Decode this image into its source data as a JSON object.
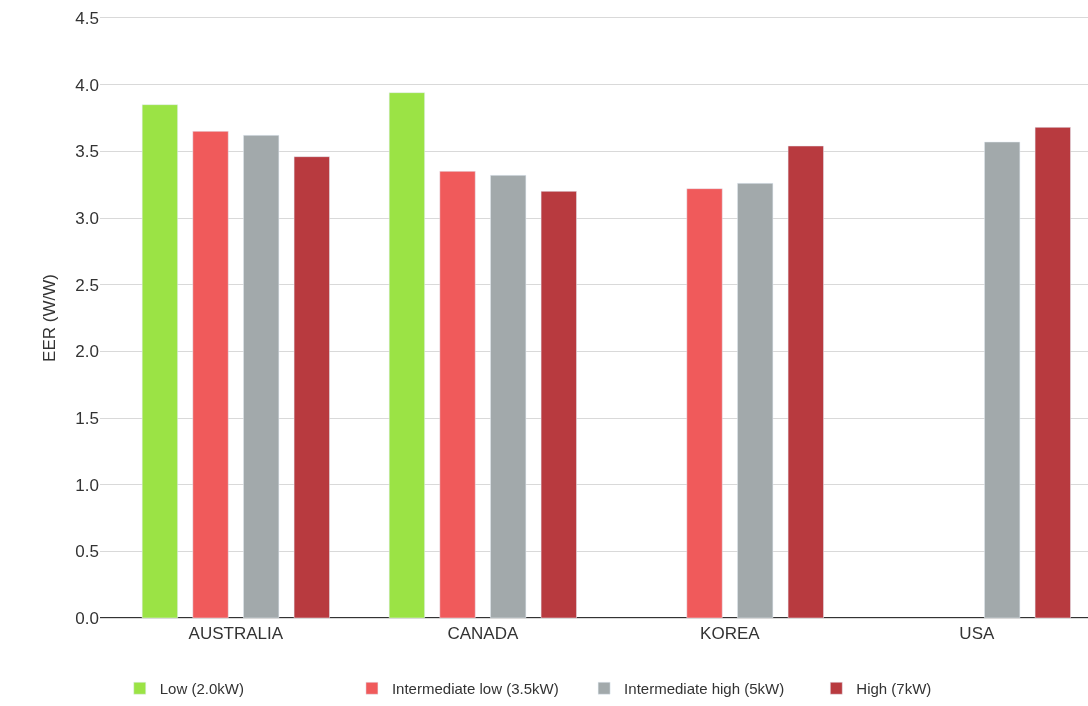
{
  "chart_data": {
    "type": "bar",
    "ylabel": "EER (W/W)",
    "categories": [
      "AUSTRALIA",
      "CANADA",
      "KOREA",
      "USA"
    ],
    "series": [
      {
        "name": "Low (2.0kW)",
        "color": "#9be345",
        "values": [
          3.85,
          3.94,
          null,
          null
        ]
      },
      {
        "name": "Intermediate low (3.5kW)",
        "color": "#f05a5b",
        "values": [
          3.65,
          3.35,
          3.22,
          null
        ]
      },
      {
        "name": "Intermediate high (5kW)",
        "color": "#a2a9ab",
        "values": [
          3.62,
          3.32,
          3.26,
          3.57
        ]
      },
      {
        "name": "High (7kW)",
        "color": "#b83a3f",
        "values": [
          3.46,
          3.2,
          3.54,
          3.68
        ]
      }
    ],
    "ylim": [
      0,
      4.5
    ],
    "yticks": [
      {
        "value": 0,
        "label": "0.0"
      },
      {
        "value": 0.5,
        "label": "0.5"
      },
      {
        "value": 1,
        "label": "1.0"
      },
      {
        "value": 1.5,
        "label": "1.5"
      },
      {
        "value": 2,
        "label": "2.0"
      },
      {
        "value": 2.5,
        "label": "2.5"
      },
      {
        "value": 3,
        "label": "3.0"
      },
      {
        "value": 3.5,
        "label": "3.5"
      },
      {
        "value": 4,
        "label": "4.0"
      },
      {
        "value": 4.5,
        "label": "4.5"
      }
    ],
    "grid": "y",
    "legend": "bottom"
  }
}
